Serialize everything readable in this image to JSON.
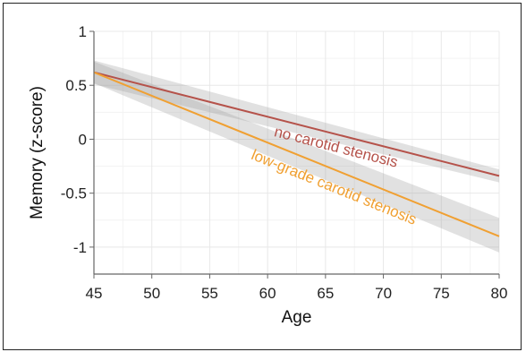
{
  "chart_data": {
    "type": "line",
    "title": "",
    "xlabel": "Age",
    "ylabel": "Memory (z-score)",
    "xlim": [
      45,
      80
    ],
    "ylim": [
      -1.25,
      1.0
    ],
    "x_ticks": [
      45,
      50,
      55,
      60,
      65,
      70,
      75,
      80
    ],
    "y_ticks": [
      -1,
      -0.5,
      0,
      0.5,
      1
    ],
    "y_tick_labels": [
      "-1",
      "-0.5",
      "0",
      "0.5",
      "1"
    ],
    "grid": true,
    "series": [
      {
        "name": "no carotid stenosis",
        "color": "#b5524a",
        "x": [
          45,
          80
        ],
        "y": [
          0.62,
          -0.34
        ],
        "ci_lower": [
          0.51,
          -0.4
        ],
        "ci_upper": [
          0.73,
          -0.28
        ],
        "label_position": [
          60.5,
          0.03
        ],
        "label_angle_data_slope": true
      },
      {
        "name": "low-grade carotid stenosis",
        "color": "#f0a032",
        "x": [
          45,
          80
        ],
        "y": [
          0.62,
          -0.9
        ],
        "ci_lower": [
          0.52,
          -1.05
        ],
        "ci_upper": [
          0.72,
          -0.73
        ],
        "label_position": [
          58.5,
          -0.18
        ],
        "label_angle_data_slope": true
      }
    ]
  }
}
